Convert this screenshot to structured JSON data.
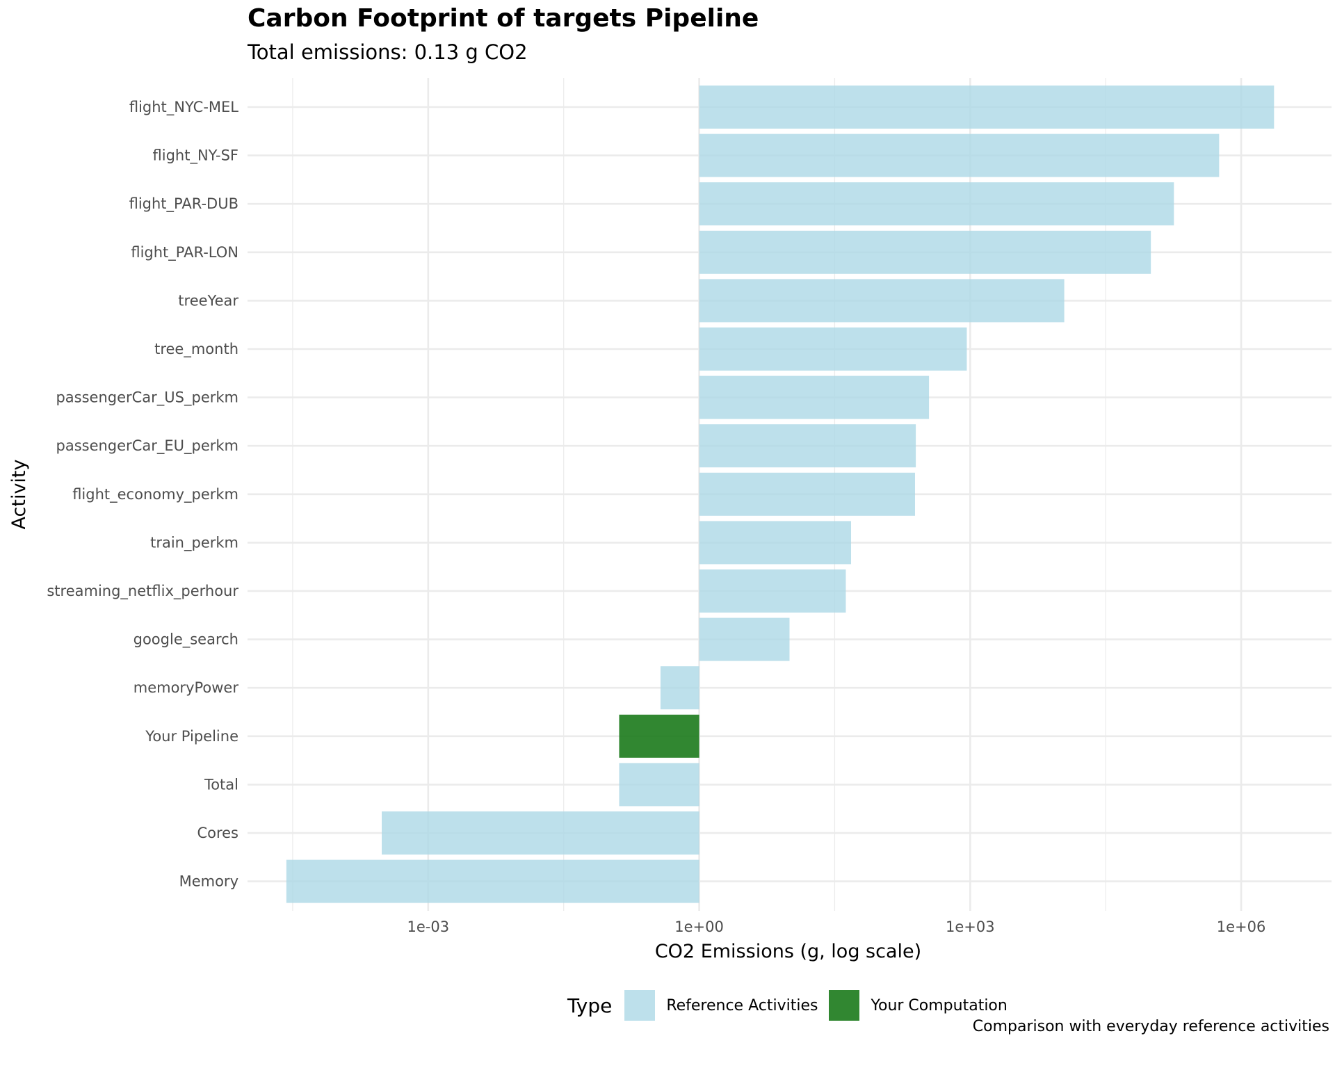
{
  "chart": {
    "title": "Carbon Footprint of targets Pipeline",
    "subtitle": "Total emissions: 0.13 g CO2",
    "caption": "Comparison with everyday reference activities"
  },
  "legend": {
    "title": "Type",
    "items": [
      {
        "label": "Reference Activities",
        "color": "#add8e6"
      },
      {
        "label": "Your Computation",
        "color": "#1b7a1b"
      }
    ]
  },
  "chart_data": {
    "type": "bar",
    "orientation": "horizontal",
    "title": "Carbon Footprint of targets Pipeline",
    "subtitle": "Total emissions: 0.13 g CO2",
    "xlabel": "CO2 Emissions (g, log scale)",
    "ylabel": "Activity",
    "x_scale": "log10",
    "xlim": [
      1e-05,
      10000000.0
    ],
    "x_ticks": [
      0.001,
      1,
      1000,
      1000000
    ],
    "x_tick_labels": [
      "1e-03",
      "1e+00",
      "1e+03",
      "1e+06"
    ],
    "bar_baseline": 1,
    "grid": true,
    "legend_position": "bottom",
    "categories": [
      "flight_NYC-MEL",
      "flight_NY-SF",
      "flight_PAR-DUB",
      "flight_PAR-LON",
      "treeYear",
      "tree_month",
      "passengerCar_US_perkm",
      "passengerCar_EU_perkm",
      "flight_economy_perkm",
      "train_perkm",
      "streaming_netflix_perhour",
      "google_search",
      "memoryPower",
      "Your Pipeline",
      "Total",
      "Cores",
      "Memory"
    ],
    "values": [
      2310000,
      570000,
      180000,
      100000,
      11000,
      917,
      350,
      250,
      245,
      48,
      42,
      10,
      0.373,
      0.13,
      0.13,
      0.000306,
      2.69e-05
    ],
    "types": [
      "Reference Activities",
      "Reference Activities",
      "Reference Activities",
      "Reference Activities",
      "Reference Activities",
      "Reference Activities",
      "Reference Activities",
      "Reference Activities",
      "Reference Activities",
      "Reference Activities",
      "Reference Activities",
      "Reference Activities",
      "Reference Activities",
      "Your Computation",
      "Reference Activities",
      "Reference Activities",
      "Reference Activities"
    ]
  }
}
